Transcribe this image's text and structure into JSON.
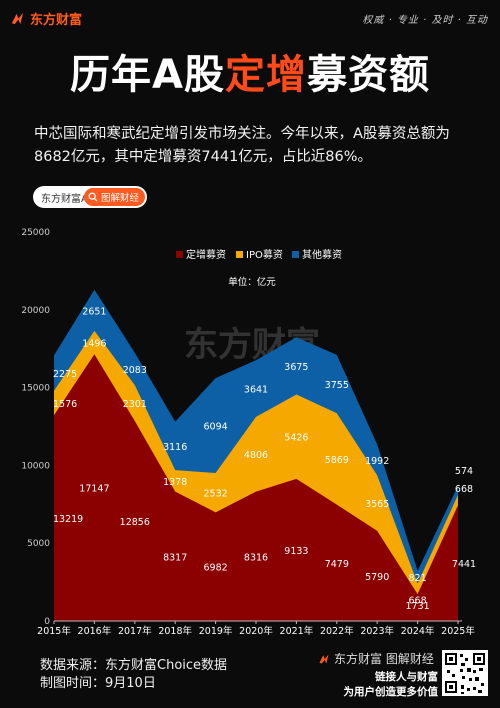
{
  "header": {
    "brand": "东方财富",
    "slogan": "权威 · 专业 · 及时 · 互动",
    "title_part1": "历年A股",
    "title_highlight": "定增",
    "title_part2": "募资额",
    "subtitle": "中芯国际和寒武纪定增引发市场关注。今年以来，A股募资总额为8682亿元，其中定增募资7441亿元，占比近86%。",
    "pill_left": "东方财富APP",
    "pill_right": "图解财经"
  },
  "watermark": "东方财富",
  "colors": {
    "dingzeng": "#8b0000",
    "ipo": "#f5a800",
    "other": "#0d5fa6",
    "accent": "#ff5a1f"
  },
  "chart_data": {
    "type": "area",
    "stacked": true,
    "title": "",
    "xlabel": "",
    "ylabel": "",
    "unit_label": "单位：亿元",
    "x": [
      "2015年",
      "2016年",
      "2017年",
      "2018年",
      "2019年",
      "2020年",
      "2021年",
      "2022年",
      "2023年",
      "2024年",
      "2025年"
    ],
    "ylim": [
      0,
      25000
    ],
    "yticks": [
      0,
      5000,
      10000,
      15000,
      20000,
      25000
    ],
    "grid": false,
    "legend_position": "top-center",
    "series": [
      {
        "name": "定增募资",
        "values": [
          13219,
          17147,
          12856,
          8317,
          6982,
          8316,
          9133,
          7479,
          5790,
          1731,
          7441
        ]
      },
      {
        "name": "IPO募资",
        "values": [
          1576,
          1496,
          2301,
          1378,
          2532,
          4806,
          5426,
          5869,
          3565,
          668,
          668
        ]
      },
      {
        "name": "其他募资",
        "values": [
          2275,
          2651,
          2083,
          3116,
          6094,
          3641,
          3675,
          3755,
          1992,
          821,
          574
        ]
      }
    ]
  },
  "footer": {
    "source": "数据来源：东方财富Choice数据",
    "date": "制图时间：9月10日",
    "brand": "东方财富 图解财经",
    "slogan_line1": "链接人与财富",
    "slogan_line2": "为用户创造更多价值"
  }
}
